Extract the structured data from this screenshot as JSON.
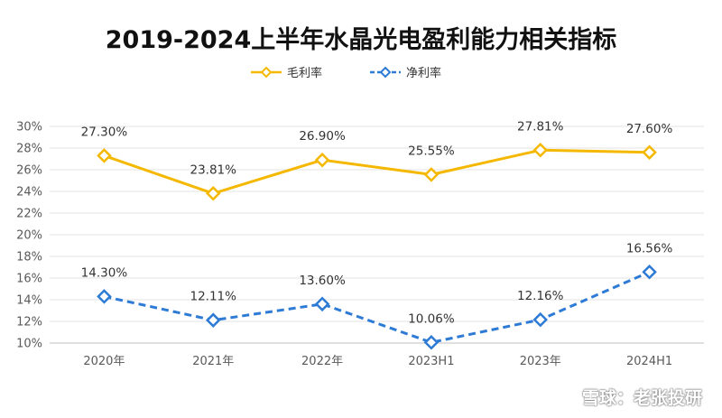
{
  "chart_data": {
    "type": "line",
    "title": "2019-2024上半年水晶光电盈利能力相关指标",
    "categories": [
      "2020年",
      "2021年",
      "2022年",
      "2023H1",
      "2023年",
      "2024H1"
    ],
    "series": [
      {
        "name": "毛利率",
        "color": "#f5b800",
        "style": "solid",
        "values": [
          27.3,
          23.81,
          26.9,
          25.55,
          27.81,
          27.6
        ],
        "labels": [
          "27.30%",
          "23.81%",
          "26.90%",
          "25.55%",
          "27.81%",
          "27.60%"
        ]
      },
      {
        "name": "净利率",
        "color": "#2e7bd6",
        "style": "dashed",
        "values": [
          14.3,
          12.11,
          13.6,
          10.06,
          12.16,
          16.56
        ],
        "labels": [
          "14.30%",
          "12.11%",
          "13.60%",
          "10.06%",
          "12.16%",
          "16.56%"
        ]
      }
    ],
    "ylim": [
      10,
      30
    ],
    "yticks": [
      "10%",
      "12%",
      "14%",
      "16%",
      "18%",
      "20%",
      "22%",
      "24%",
      "26%",
      "28%",
      "30%"
    ],
    "grid": true,
    "legend_position": "top-center",
    "marker": "diamond"
  },
  "watermark": "雪球：老张投研"
}
